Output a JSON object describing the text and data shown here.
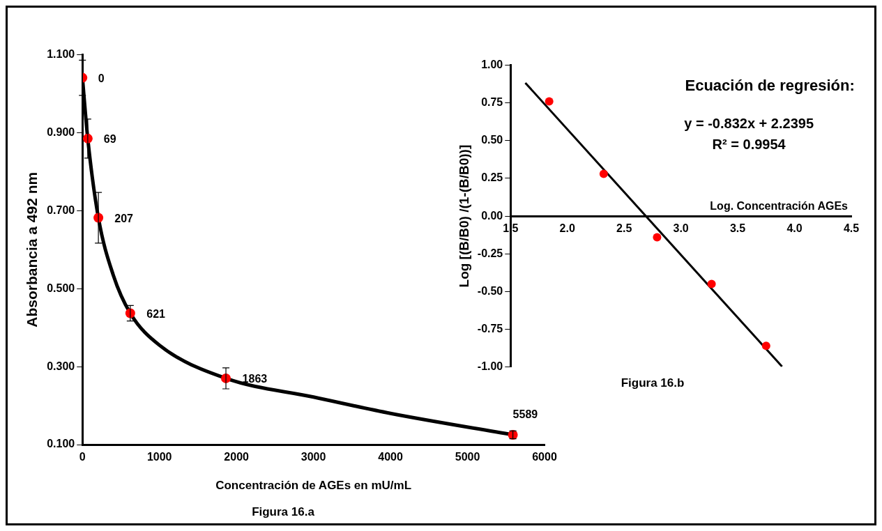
{
  "chart_data": [
    {
      "type": "scatter",
      "title": "Figura 16.a",
      "xlabel": "Concentración de AGEs en mU/mL",
      "ylabel": "Absorbancia a 492 nm",
      "xlim": [
        0,
        6000
      ],
      "xticks": [
        0,
        1000,
        2000,
        3000,
        4000,
        5000,
        6000
      ],
      "ylim": [
        0.1,
        1.1
      ],
      "yticks": [
        {
          "value": 0.1,
          "label": "0.100"
        },
        {
          "value": 0.3,
          "label": "0.300"
        },
        {
          "value": 0.5,
          "label": "0.500"
        },
        {
          "value": 0.7,
          "label": "0.700"
        },
        {
          "value": 0.9,
          "label": "0.900"
        },
        {
          "value": 1.1,
          "label": "1.100"
        }
      ],
      "grid": false,
      "legend": false,
      "marker": "circle",
      "series": [
        {
          "type": "line",
          "color": "#000000",
          "marker": "none",
          "x": [
            0,
            69,
            207,
            400,
            621,
            1000,
            1863,
            3000,
            4000,
            5589
          ],
          "values": [
            1.041,
            0.885,
            0.682,
            0.535,
            0.437,
            0.355,
            0.27,
            0.222,
            0.18,
            0.125
          ]
        },
        {
          "type": "scatter",
          "color": "#ff0000",
          "x": [
            0,
            69,
            207,
            621,
            1863,
            5589
          ],
          "values": [
            1.041,
            0.885,
            0.682,
            0.437,
            0.27,
            0.125
          ],
          "errors": [
            0.045,
            0.05,
            0.065,
            0.02,
            0.027,
            0.01
          ]
        }
      ],
      "annotations": [
        {
          "text": "0",
          "x": 0,
          "y": 1.041
        },
        {
          "text": "69",
          "x": 69,
          "y": 0.885
        },
        {
          "text": "207",
          "x": 207,
          "y": 0.682
        },
        {
          "text": "621",
          "x": 621,
          "y": 0.437
        },
        {
          "text": "1863",
          "x": 1863,
          "y": 0.27
        },
        {
          "text": "5589",
          "x": 5589,
          "y": 0.125
        }
      ]
    },
    {
      "type": "scatter",
      "title": "Figura 16.b",
      "xlabel": "Log. Concentración AGEs",
      "ylabel": "Log [(B/B0) /(1-(B/B0))]",
      "xlim": [
        1.5,
        4.5
      ],
      "xticks": [
        {
          "value": 1.5,
          "label": "1.5"
        },
        {
          "value": 2,
          "label": "2.0"
        },
        {
          "value": 2.5,
          "label": "2.5"
        },
        {
          "value": 3,
          "label": "3.0"
        },
        {
          "value": 3.5,
          "label": "3.5"
        },
        {
          "value": 4,
          "label": "4.0"
        },
        {
          "value": 4.5,
          "label": "4.5"
        }
      ],
      "ylim": [
        -1,
        1
      ],
      "yticks": [
        {
          "value": -1,
          "label": "-1.00"
        },
        {
          "value": -0.75,
          "label": "-0.75"
        },
        {
          "value": -0.5,
          "label": "-0.50"
        },
        {
          "value": -0.25,
          "label": "-0.25"
        },
        {
          "value": 0,
          "label": "0.00"
        },
        {
          "value": 0.25,
          "label": "0.25"
        },
        {
          "value": 0.5,
          "label": "0.50"
        },
        {
          "value": 0.75,
          "label": "0.75"
        },
        {
          "value": 1,
          "label": "1.00"
        }
      ],
      "grid": false,
      "legend": false,
      "marker": "circle",
      "annotations": [
        "Ecuación de regresión:",
        "y = -0.832x + 2.2395",
        "R² = 0.9954"
      ],
      "series": [
        {
          "type": "scatter",
          "color": "#ff0000",
          "x": [
            1.84,
            2.32,
            2.79,
            3.27,
            3.75
          ],
          "values": [
            0.76,
            0.28,
            -0.14,
            -0.45,
            -0.86
          ]
        },
        {
          "type": "line",
          "color": "#000000",
          "marker": "none",
          "x": [
            1.63,
            3.89
          ],
          "values": [
            0.883,
            -0.997
          ]
        }
      ]
    }
  ]
}
